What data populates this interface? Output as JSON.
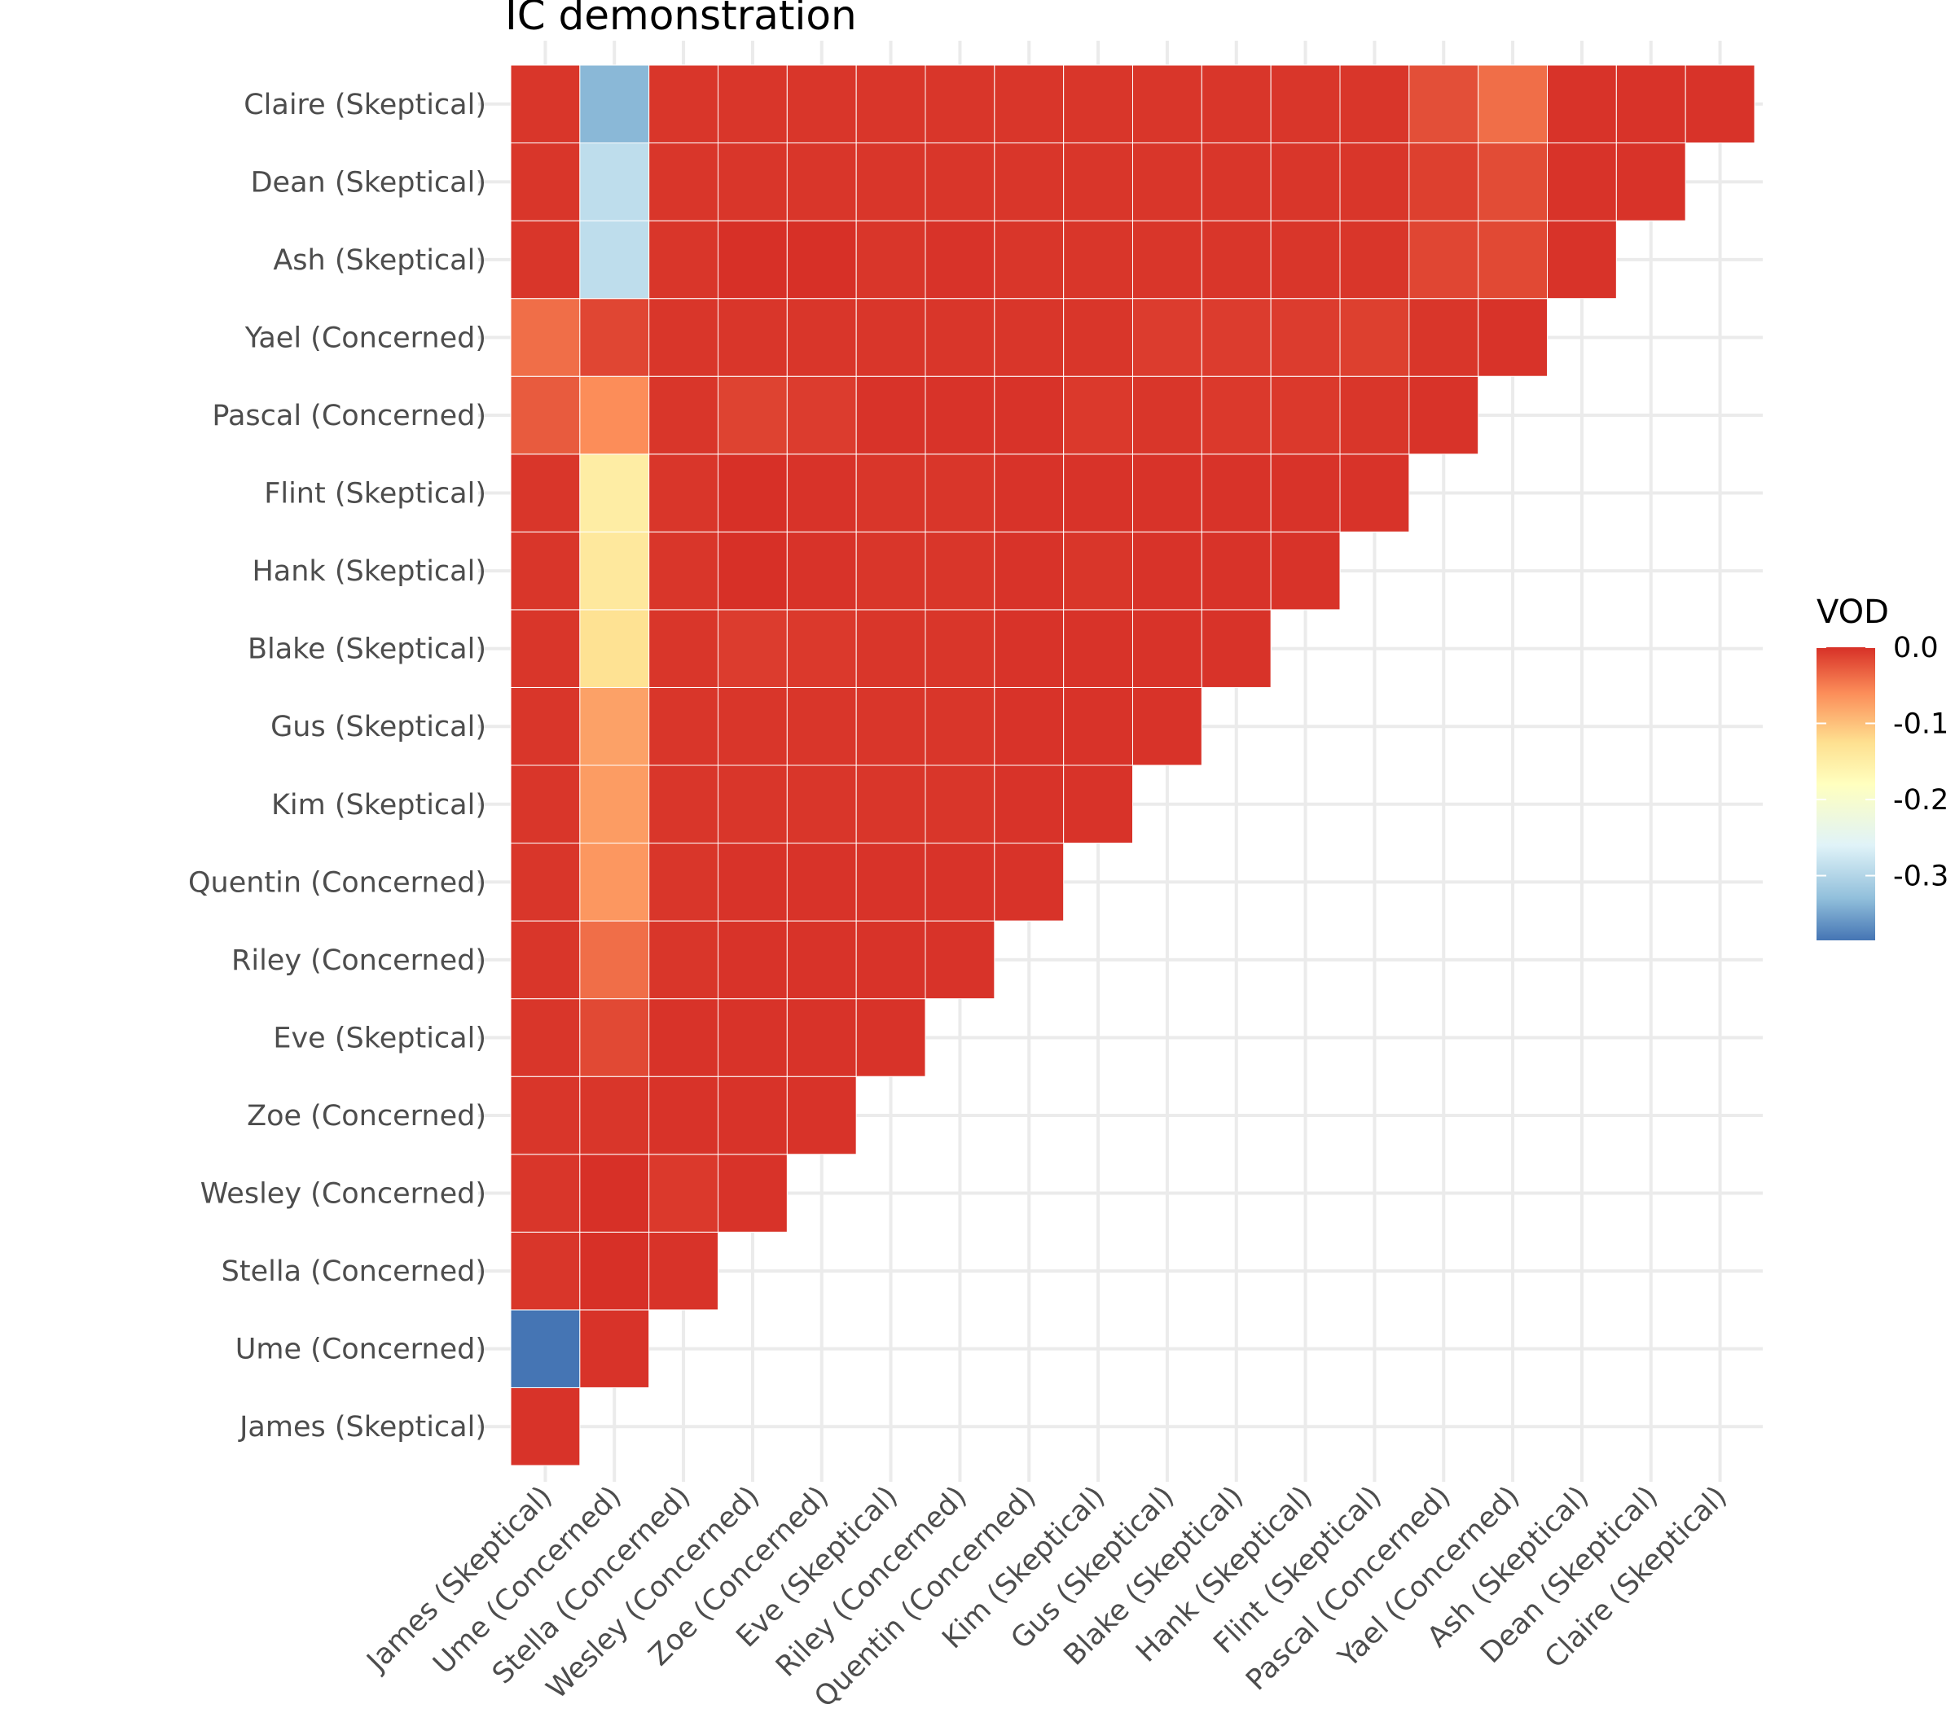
{
  "chart_data": {
    "type": "heatmap",
    "title": "IC demonstration",
    "xlabel": "",
    "ylabel": "",
    "categories": [
      "James (Skeptical)",
      "Ume (Concerned)",
      "Stella (Concerned)",
      "Wesley (Concerned)",
      "Zoe (Concerned)",
      "Eve (Skeptical)",
      "Riley (Concerned)",
      "Quentin (Concerned)",
      "Kim (Skeptical)",
      "Gus (Skeptical)",
      "Blake (Skeptical)",
      "Hank (Skeptical)",
      "Flint (Skeptical)",
      "Pascal (Concerned)",
      "Yael (Concerned)",
      "Ash (Skeptical)",
      "Dean (Skeptical)",
      "Claire (Skeptical)"
    ],
    "value_layout": "lower-triangle rows: row i holds values for columns 0..i; x and y categories share the same order, y listed bottom-to-top",
    "values": [
      [
        -0.002
      ],
      [
        -0.385,
        -0.002
      ],
      [
        -0.004,
        0.0,
        -0.002
      ],
      [
        -0.004,
        0.0,
        -0.006,
        -0.002
      ],
      [
        -0.004,
        -0.004,
        -0.002,
        -0.002,
        -0.002
      ],
      [
        -0.004,
        -0.016,
        -0.002,
        -0.002,
        -0.002,
        -0.002
      ],
      [
        -0.004,
        -0.04,
        -0.004,
        -0.002,
        -0.002,
        -0.002,
        -0.002
      ],
      [
        -0.004,
        -0.068,
        -0.004,
        -0.002,
        -0.002,
        -0.002,
        -0.002,
        -0.002
      ],
      [
        -0.004,
        -0.072,
        -0.004,
        -0.004,
        -0.004,
        -0.004,
        -0.004,
        -0.002,
        -0.002
      ],
      [
        -0.004,
        -0.076,
        -0.004,
        -0.004,
        -0.004,
        -0.004,
        -0.004,
        -0.002,
        -0.002,
        -0.002
      ],
      [
        -0.004,
        -0.128,
        -0.004,
        -0.008,
        -0.006,
        -0.004,
        -0.004,
        -0.002,
        -0.002,
        -0.002,
        -0.002
      ],
      [
        -0.004,
        -0.14,
        -0.004,
        -0.0,
        -0.002,
        -0.004,
        -0.004,
        -0.002,
        -0.004,
        -0.002,
        -0.002,
        -0.002
      ],
      [
        -0.004,
        -0.148,
        -0.004,
        -0.0,
        -0.002,
        -0.004,
        -0.004,
        -0.002,
        -0.002,
        -0.002,
        -0.002,
        -0.002,
        -0.002
      ],
      [
        -0.028,
        -0.06,
        -0.004,
        -0.012,
        -0.008,
        -0.002,
        -0.002,
        -0.002,
        -0.006,
        -0.004,
        -0.006,
        -0.006,
        -0.004,
        -0.002
      ],
      [
        -0.04,
        -0.014,
        -0.004,
        -0.004,
        -0.004,
        -0.004,
        -0.004,
        -0.004,
        -0.004,
        -0.008,
        -0.008,
        -0.008,
        -0.01,
        -0.004,
        -0.002
      ],
      [
        -0.004,
        -0.29,
        -0.004,
        -0.0,
        -0.0,
        -0.004,
        -0.002,
        -0.004,
        -0.004,
        -0.004,
        -0.004,
        -0.004,
        -0.004,
        -0.014,
        -0.016,
        -0.002
      ],
      [
        -0.004,
        -0.29,
        -0.004,
        -0.004,
        -0.004,
        -0.004,
        -0.004,
        -0.004,
        -0.004,
        -0.004,
        -0.004,
        -0.004,
        -0.004,
        -0.01,
        -0.018,
        -0.002,
        -0.002
      ],
      [
        -0.004,
        -0.335,
        -0.004,
        -0.004,
        -0.004,
        -0.004,
        -0.004,
        -0.004,
        -0.004,
        -0.004,
        -0.004,
        -0.004,
        -0.004,
        -0.02,
        -0.04,
        -0.002,
        -0.002,
        -0.002
      ]
    ],
    "legend": {
      "title": "VOD",
      "position": "right",
      "breaks": [
        "0.0",
        "-0.1",
        "-0.2",
        "-0.3"
      ],
      "break_values": [
        0.0,
        -0.1,
        -0.2,
        -0.3
      ],
      "range": [
        -0.385,
        0.0
      ]
    },
    "color_scale": {
      "stops": [
        "#4575b4",
        "#91bfdb",
        "#e0f3f8",
        "#ffffbf",
        "#fee090",
        "#fc8d59",
        "#d73027"
      ],
      "stop_values": [
        -0.385,
        -0.33,
        -0.26,
        -0.18,
        -0.125,
        -0.06,
        0.0
      ]
    },
    "grid": true,
    "axis_text_color": "#4d4d4d",
    "grid_color": "#ebebeb"
  }
}
